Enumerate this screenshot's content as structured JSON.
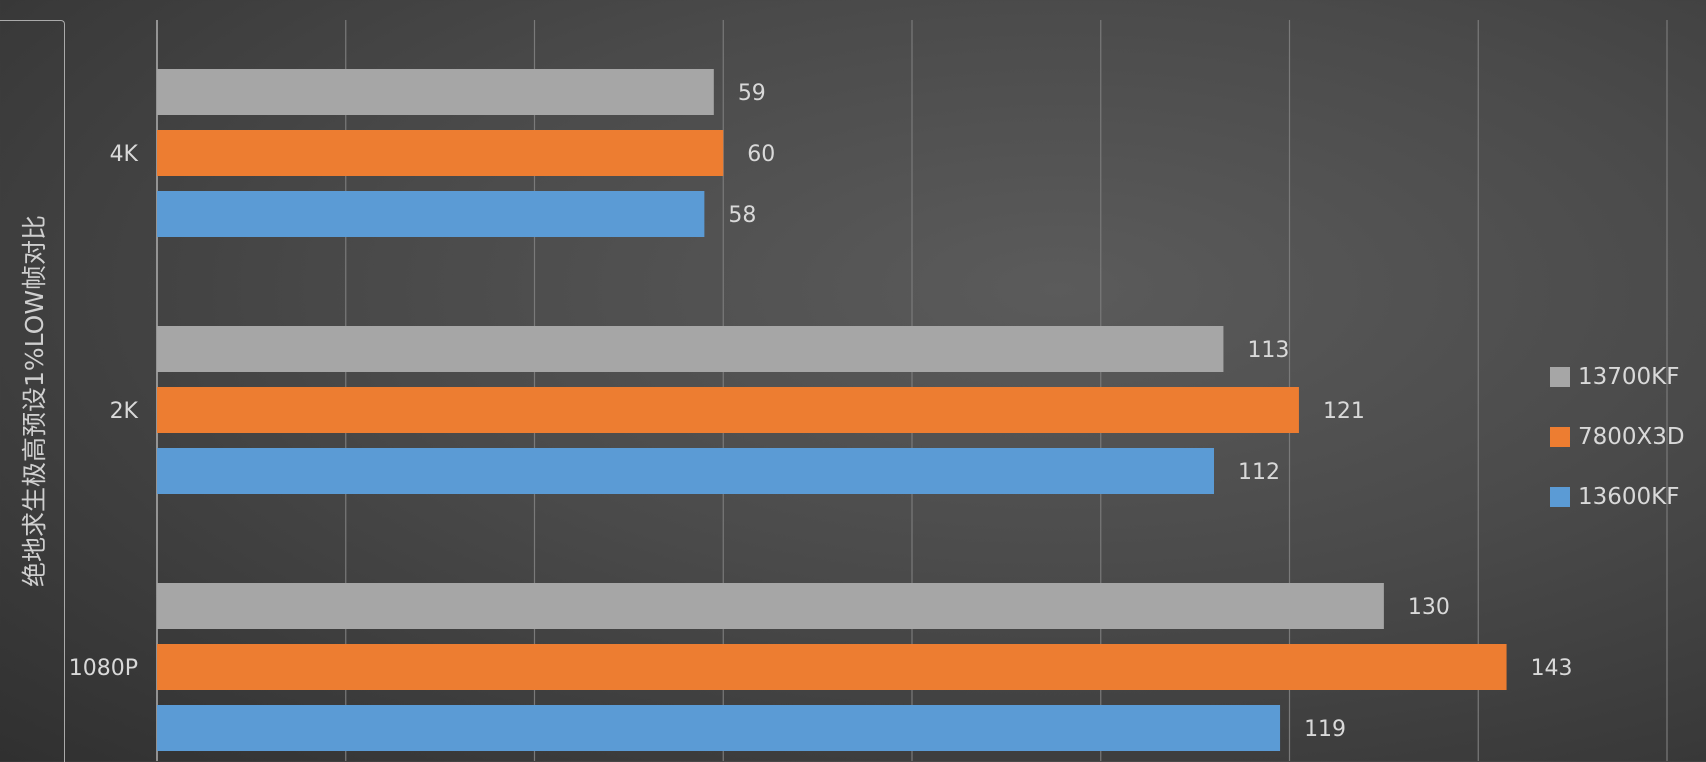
{
  "chart_data": {
    "type": "bar",
    "orientation": "horizontal",
    "title": "",
    "ylabel": "绝地求生极高预设1%LOW帧对比",
    "xlabel": "",
    "categories": [
      "4K",
      "2K",
      "1080P"
    ],
    "series": [
      {
        "name": "13700KF",
        "color": "#a6a6a6",
        "values": [
          59,
          113,
          130
        ]
      },
      {
        "name": "7800X3D",
        "color": "#ed7d31",
        "values": [
          60,
          121,
          143
        ]
      },
      {
        "name": "13600KF",
        "color": "#5b9bd5",
        "values": [
          58,
          112,
          119
        ]
      }
    ],
    "xlim": [
      0,
      160
    ],
    "x_grid_step": 20,
    "grid": true,
    "legend": "right"
  }
}
